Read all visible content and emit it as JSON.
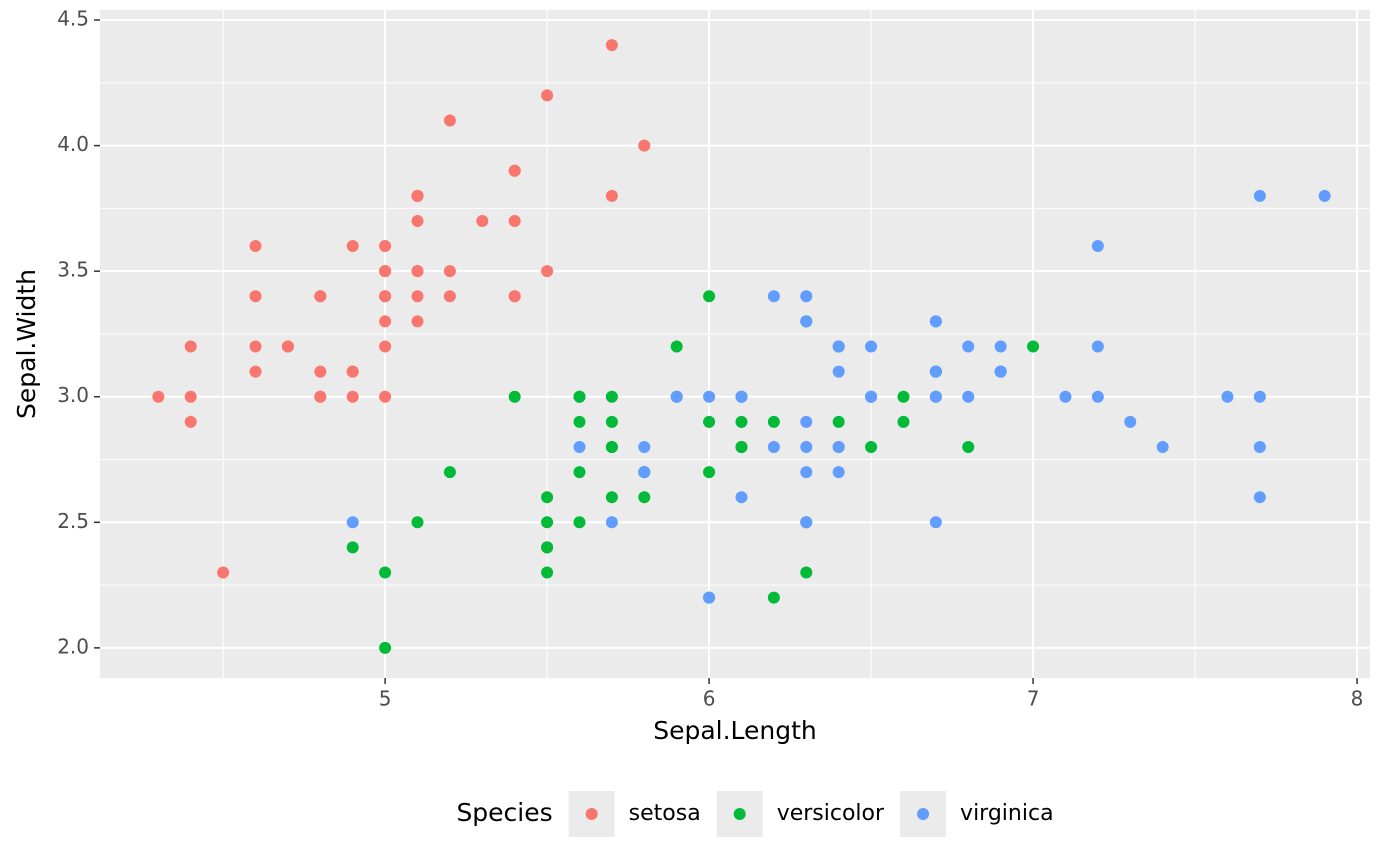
{
  "chart_data": {
    "type": "scatter",
    "x_label": "Sepal.Length",
    "y_label": "Sepal.Width",
    "legend_title": "Species",
    "xlim": [
      4.12,
      8.04
    ],
    "ylim": [
      1.88,
      4.54
    ],
    "xticks": [
      5,
      6,
      7,
      8
    ],
    "yticks": [
      {
        "value": 2,
        "label": "2.0"
      },
      {
        "value": 2.5,
        "label": "2.5"
      },
      {
        "value": 3,
        "label": "3.0"
      },
      {
        "value": 3.5,
        "label": "3.5"
      },
      {
        "value": 4,
        "label": "4.0"
      },
      {
        "value": 4.5,
        "label": "4.5"
      }
    ],
    "grid": true,
    "legend_position": "bottom",
    "series": [
      {
        "name": "setosa",
        "color": "#F8766D",
        "x": [
          5.1,
          4.9,
          4.7,
          4.6,
          5.0,
          5.4,
          4.6,
          5.0,
          4.4,
          4.9,
          5.4,
          4.8,
          4.8,
          4.3,
          5.8,
          5.7,
          5.4,
          5.1,
          5.7,
          5.1,
          5.4,
          5.1,
          4.6,
          5.1,
          4.8,
          5.0,
          5.0,
          5.2,
          5.2,
          4.7,
          4.8,
          5.4,
          5.2,
          5.5,
          4.9,
          5.0,
          5.5,
          4.9,
          4.4,
          5.1,
          5.0,
          4.5,
          4.4,
          5.0,
          5.1,
          4.8,
          5.1,
          4.6,
          5.3,
          5.0
        ],
        "y": [
          3.5,
          3.0,
          3.2,
          3.1,
          3.6,
          3.9,
          3.4,
          3.4,
          2.9,
          3.1,
          3.7,
          3.4,
          3.0,
          3.0,
          4.0,
          4.4,
          3.9,
          3.5,
          3.8,
          3.8,
          3.4,
          3.7,
          3.6,
          3.3,
          3.4,
          3.0,
          3.4,
          3.5,
          3.4,
          3.2,
          3.1,
          3.4,
          4.1,
          4.2,
          3.1,
          3.2,
          3.5,
          3.6,
          3.0,
          3.4,
          3.5,
          2.3,
          3.2,
          3.5,
          3.8,
          3.0,
          3.8,
          3.2,
          3.7,
          3.3
        ]
      },
      {
        "name": "versicolor",
        "color": "#00BA38",
        "x": [
          7.0,
          6.4,
          6.9,
          5.5,
          6.5,
          5.7,
          6.3,
          4.9,
          6.6,
          5.2,
          5.0,
          5.9,
          6.0,
          6.1,
          5.6,
          6.7,
          5.6,
          5.8,
          6.2,
          5.6,
          5.9,
          6.1,
          6.3,
          6.1,
          6.4,
          6.6,
          6.8,
          6.7,
          6.0,
          5.7,
          5.5,
          5.5,
          5.8,
          6.0,
          5.4,
          6.0,
          6.7,
          6.3,
          5.6,
          5.5,
          5.5,
          6.1,
          5.8,
          5.0,
          5.6,
          5.7,
          5.7,
          6.2,
          5.1,
          5.7
        ],
        "y": [
          3.2,
          3.2,
          3.1,
          2.3,
          2.8,
          2.8,
          3.3,
          2.4,
          2.9,
          2.7,
          2.0,
          3.0,
          2.2,
          2.9,
          2.9,
          3.1,
          3.0,
          2.7,
          2.2,
          2.5,
          3.2,
          2.8,
          2.5,
          2.8,
          2.9,
          3.0,
          2.8,
          3.0,
          2.9,
          2.6,
          2.4,
          2.4,
          2.7,
          2.7,
          3.0,
          3.4,
          3.1,
          2.3,
          3.0,
          2.5,
          2.6,
          3.0,
          2.6,
          2.3,
          2.7,
          3.0,
          2.9,
          2.9,
          2.5,
          2.8
        ]
      },
      {
        "name": "virginica",
        "color": "#619CFF",
        "x": [
          6.3,
          5.8,
          7.1,
          6.3,
          6.5,
          7.6,
          4.9,
          7.3,
          6.7,
          7.2,
          6.5,
          6.4,
          6.8,
          5.7,
          5.8,
          6.4,
          6.5,
          7.7,
          7.7,
          6.0,
          6.9,
          5.6,
          7.7,
          6.3,
          6.7,
          7.2,
          6.2,
          6.1,
          6.4,
          7.2,
          7.4,
          7.9,
          6.4,
          6.3,
          6.1,
          7.7,
          6.3,
          6.4,
          6.0,
          6.9,
          6.7,
          6.9,
          5.8,
          6.8,
          6.7,
          6.7,
          6.3,
          6.5,
          6.2,
          5.9
        ],
        "y": [
          3.3,
          2.7,
          3.0,
          2.9,
          3.0,
          3.0,
          2.5,
          2.9,
          2.5,
          3.6,
          3.2,
          2.7,
          3.0,
          2.5,
          2.8,
          3.2,
          3.0,
          3.8,
          2.6,
          2.2,
          3.2,
          2.8,
          2.8,
          2.7,
          3.3,
          3.2,
          2.8,
          3.0,
          2.8,
          3.0,
          2.8,
          3.8,
          2.8,
          2.8,
          2.6,
          3.0,
          3.4,
          3.1,
          3.0,
          3.1,
          3.1,
          3.1,
          2.7,
          3.2,
          3.3,
          3.0,
          2.5,
          3.0,
          3.4,
          3.0
        ]
      }
    ]
  }
}
